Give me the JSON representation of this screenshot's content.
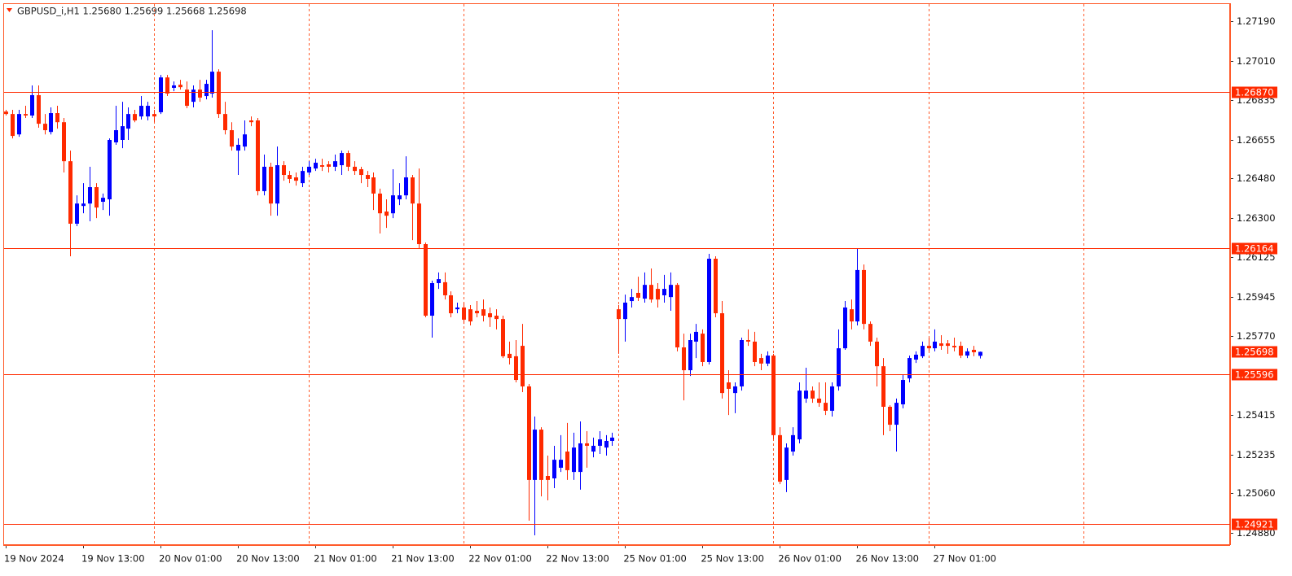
{
  "chart_data": {
    "type": "candlestick",
    "title": "GBPUSD_i,H1  1.25680 1.25699 1.25668 1.25698",
    "categories": [
      "19 Nov 2024",
      null,
      null,
      null,
      null,
      null,
      null,
      null,
      null,
      null,
      null,
      null,
      "19 Nov 13:00",
      null,
      null,
      null,
      null,
      null,
      null,
      null,
      null,
      null,
      null,
      null,
      "20 Nov 01:00",
      null,
      null,
      null,
      null,
      null,
      null,
      null,
      null,
      null,
      null,
      null,
      "20 Nov 13:00",
      null,
      null,
      null,
      null,
      null,
      null,
      null,
      null,
      null,
      null,
      null,
      "21 Nov 01:00",
      null,
      null,
      null,
      null,
      null,
      null,
      null,
      null,
      null,
      null,
      null,
      "21 Nov 13:00",
      null,
      null,
      null,
      null,
      null,
      null,
      null,
      null,
      null,
      null,
      null,
      "22 Nov 01:00",
      null,
      null,
      null,
      null,
      null,
      null,
      null,
      null,
      null,
      null,
      null,
      "22 Nov 13:00",
      null,
      null,
      null,
      null,
      null,
      null,
      null,
      null,
      null,
      null,
      null,
      "25 Nov 01:00",
      null,
      null,
      null,
      null,
      null,
      null,
      null,
      null,
      null,
      null,
      null,
      "25 Nov 13:00",
      null,
      null,
      null,
      null,
      null,
      null,
      null,
      null,
      null,
      null,
      null,
      "26 Nov 01:00",
      null,
      null,
      null,
      null,
      null,
      null,
      null,
      null,
      null,
      null,
      null,
      "26 Nov 13:00",
      null,
      null,
      null,
      null,
      null,
      null,
      null,
      null,
      null,
      null,
      null,
      "27 Nov 01:00",
      null,
      null,
      null,
      null,
      null,
      null,
      null
    ],
    "open": [
      1.26782,
      1.26771,
      1.26679,
      1.26771,
      1.26764,
      1.26856,
      1.26727,
      1.2669,
      1.26775,
      1.26734,
      1.26558,
      1.26276,
      1.26356,
      1.26367,
      1.26441,
      1.26375,
      1.26386,
      1.26643,
      1.26654,
      1.26705,
      1.26771,
      1.2676,
      1.2676,
      1.26771,
      1.26779,
      1.26936,
      1.26889,
      1.26903,
      1.26881,
      1.26826,
      1.26881,
      1.26852,
      1.26863,
      1.26962,
      1.26771,
      1.26698,
      1.26606,
      1.26624,
      1.26742,
      1.26742,
      1.26423,
      1.26533,
      1.26367,
      1.2654,
      1.26496,
      1.26485,
      1.26459,
      1.26507,
      1.26525,
      1.2654,
      1.26544,
      1.26533,
      1.2654,
      1.26595,
      1.26533,
      1.26522,
      1.26496,
      1.26485,
      1.26412,
      1.26331,
      1.26323,
      1.26386,
      1.26404,
      1.26485,
      1.26367,
      1.26184,
      1.25861,
      1.26008,
      1.26012,
      1.25953,
      1.2589,
      1.25898,
      1.2589,
      1.25883,
      1.2589,
      1.25872,
      1.25861,
      1.25846,
      1.25689,
      1.25678,
      1.25725,
      1.25542,
      1.2512,
      1.25347,
      1.25138,
      1.25127,
      1.25175,
      1.25248,
      1.25156,
      1.25156,
      1.25285,
      1.25248,
      1.25274,
      1.25266,
      1.25296,
      1.2589,
      1.25846,
      1.25927,
      1.25964,
      1.25938,
      1.26,
      1.25982,
      1.25953,
      1.25945,
      1.26,
      1.25718,
      1.25615,
      1.25744,
      1.2578,
      1.25652,
      1.26118,
      1.25872,
      1.2556,
      1.25512,
      1.25542,
      1.25751,
      1.25744,
      1.2567,
      1.25645,
      1.25681,
      1.25322,
      1.2512,
      1.25248,
      1.25303,
      1.25487,
      1.25523,
      1.25487,
      1.25468,
      1.25432,
      1.25542,
      1.25714,
      1.2589,
      1.25835,
      1.26067,
      1.25824,
      1.25744,
      1.25633,
      1.2545,
      1.25369,
      1.25461,
      1.25578,
      1.25663,
      1.25678,
      1.25725,
      1.25714,
      1.25736,
      1.25736,
      1.25725,
      1.25725,
      1.25681,
      1.25707,
      1.2568
    ],
    "high": [
      1.2679,
      1.2679,
      1.2679,
      1.26808,
      1.269,
      1.269,
      1.26771,
      1.26801,
      1.26808,
      1.26753,
      1.26606,
      1.26404,
      1.26459,
      1.26533,
      1.26459,
      1.26412,
      1.26661,
      1.26808,
      1.26826,
      1.26801,
      1.2679,
      1.26852,
      1.26826,
      1.2679,
      1.26947,
      1.26947,
      1.26918,
      1.26925,
      1.26918,
      1.269,
      1.26925,
      1.26925,
      1.27149,
      1.26973,
      1.26826,
      1.26734,
      1.26661,
      1.26742,
      1.2676,
      1.26753,
      1.26588,
      1.26551,
      1.26624,
      1.26558,
      1.26514,
      1.26507,
      1.26533,
      1.26558,
      1.26569,
      1.26569,
      1.26558,
      1.26588,
      1.26606,
      1.26606,
      1.26558,
      1.26533,
      1.26514,
      1.26507,
      1.26434,
      1.26386,
      1.26522,
      1.26459,
      1.2658,
      1.26496,
      1.26525,
      1.26191,
      1.26019,
      1.26056,
      1.26056,
      1.25971,
      1.2592,
      1.2592,
      1.25909,
      1.25927,
      1.25934,
      1.25898,
      1.2589,
      1.25861,
      1.25744,
      1.25751,
      1.25824,
      1.25553,
      1.25406,
      1.25358,
      1.2523,
      1.25274,
      1.25322,
      1.25377,
      1.25333,
      1.25384,
      1.2534,
      1.25311,
      1.2534,
      1.25322,
      1.25333,
      1.25909,
      1.25956,
      1.25982,
      1.26037,
      1.26056,
      1.26074,
      1.26008,
      1.26045,
      1.26056,
      1.26008,
      1.2578,
      1.2578,
      1.25824,
      1.25799,
      1.2614,
      1.26129,
      1.25927,
      1.25615,
      1.2556,
      1.25762,
      1.25799,
      1.25788,
      1.25689,
      1.257,
      1.25689,
      1.25358,
      1.25285,
      1.25358,
      1.2556,
      1.25626,
      1.25542,
      1.2556,
      1.2556,
      1.2556,
      1.25799,
      1.25927,
      1.25934,
      1.26166,
      1.26092,
      1.25835,
      1.25762,
      1.2567,
      1.25457,
      1.25487,
      1.25597,
      1.25681,
      1.257,
      1.25744,
      1.25762,
      1.25799,
      1.25773,
      1.25751,
      1.25762,
      1.25744,
      1.25714,
      1.25725,
      1.25699
    ],
    "low": [
      1.26764,
      1.26661,
      1.26668,
      1.26753,
      1.26753,
      1.26709,
      1.26679,
      1.26679,
      1.26705,
      1.26507,
      1.26129,
      1.26265,
      1.26323,
      1.26287,
      1.26301,
      1.26338,
      1.26312,
      1.26632,
      1.26617,
      1.26654,
      1.26734,
      1.26746,
      1.26742,
      1.26734,
      1.26771,
      1.26852,
      1.26874,
      1.26881,
      1.26797,
      1.26801,
      1.26826,
      1.26837,
      1.26845,
      1.26753,
      1.26679,
      1.26606,
      1.26496,
      1.26606,
      1.26716,
      1.26404,
      1.26404,
      1.26312,
      1.26312,
      1.2647,
      1.26459,
      1.26448,
      1.26441,
      1.26496,
      1.26514,
      1.26514,
      1.26507,
      1.26514,
      1.26496,
      1.26514,
      1.26496,
      1.26459,
      1.26441,
      1.26338,
      1.26232,
      1.26257,
      1.26301,
      1.2636,
      1.26386,
      1.26202,
      1.26166,
      1.25854,
      1.25762,
      1.25982,
      1.25934,
      1.25854,
      1.25872,
      1.25824,
      1.25817,
      1.25854,
      1.25835,
      1.2581,
      1.25799,
      1.2567,
      1.25641,
      1.2556,
      1.25516,
      1.24936,
      1.2487,
      1.25046,
      1.25028,
      1.25083,
      1.25156,
      1.2512,
      1.2512,
      1.25076,
      1.25175,
      1.25222,
      1.25237,
      1.2523,
      1.25274,
      1.25689,
      1.25744,
      1.25898,
      1.25927,
      1.2592,
      1.2592,
      1.25898,
      1.2592,
      1.25883,
      1.257,
      1.25479,
      1.25589,
      1.2567,
      1.25633,
      1.25641,
      1.25854,
      1.25487,
      1.25413,
      1.25421,
      1.25523,
      1.25725,
      1.25633,
      1.25615,
      1.25633,
      1.25303,
      1.25101,
      1.25065,
      1.2523,
      1.25285,
      1.25468,
      1.25468,
      1.2545,
      1.25413,
      1.25406,
      1.25523,
      1.25707,
      1.25799,
      1.25817,
      1.25799,
      1.25725,
      1.25542,
      1.25322,
      1.2534,
      1.25248,
      1.25443,
      1.2556,
      1.25648,
      1.2567,
      1.257,
      1.257,
      1.25707,
      1.25689,
      1.257,
      1.2567,
      1.2567,
      1.25678,
      1.25668
    ],
    "close": [
      1.26771,
      1.26672,
      1.26771,
      1.26764,
      1.26856,
      1.26727,
      1.26698,
      1.26775,
      1.26734,
      1.26558,
      1.26276,
      1.26367,
      1.26367,
      1.26441,
      1.26349,
      1.26393,
      1.26654,
      1.26698,
      1.26716,
      1.26771,
      1.26742,
      1.26808,
      1.26808,
      1.2676,
      1.26936,
      1.26863,
      1.269,
      1.26892,
      1.26808,
      1.26881,
      1.26845,
      1.26907,
      1.26962,
      1.26771,
      1.26698,
      1.26624,
      1.26632,
      1.26679,
      1.26734,
      1.26423,
      1.26533,
      1.26367,
      1.2654,
      1.26496,
      1.26478,
      1.2647,
      1.26514,
      1.26533,
      1.26551,
      1.26533,
      1.26533,
      1.26558,
      1.26595,
      1.26533,
      1.26514,
      1.26496,
      1.26478,
      1.26412,
      1.26323,
      1.26312,
      1.26404,
      1.26404,
      1.26485,
      1.26367,
      1.26184,
      1.25861,
      1.26008,
      1.26026,
      1.25953,
      1.25872,
      1.25898,
      1.25843,
      1.25835,
      1.25872,
      1.25861,
      1.25854,
      1.25846,
      1.25678,
      1.2567,
      1.25571,
      1.25542,
      1.2512,
      1.25347,
      1.2512,
      1.2512,
      1.25211,
      1.25211,
      1.25164,
      1.25266,
      1.25285,
      1.25274,
      1.25274,
      1.25303,
      1.25296,
      1.25311,
      1.25846,
      1.2592,
      1.25945,
      1.25942,
      1.26,
      1.25934,
      1.25934,
      1.25982,
      1.26,
      1.25718,
      1.25615,
      1.25751,
      1.25788,
      1.25652,
      1.26118,
      1.25872,
      1.25512,
      1.25531,
      1.25542,
      1.25751,
      1.25744,
      1.25652,
      1.25645,
      1.25681,
      1.25322,
      1.25112,
      1.25266,
      1.25322,
      1.25523,
      1.25523,
      1.25487,
      1.25468,
      1.25432,
      1.25542,
      1.25714,
      1.25898,
      1.25835,
      1.26067,
      1.25824,
      1.25744,
      1.25633,
      1.2545,
      1.25369,
      1.25468,
      1.25571,
      1.2567,
      1.25685,
      1.25725,
      1.25714,
      1.25744,
      1.25725,
      1.25725,
      1.25718,
      1.25681,
      1.257,
      1.25696,
      1.25698
    ],
    "up_color": "#0000ff",
    "down_color": "#ff2a00",
    "ylim": [
      1.24826,
      1.27267
    ],
    "yticks": [
      {
        "value": 1.2719,
        "label": "1.27190"
      },
      {
        "value": 1.2701,
        "label": "1.27010"
      },
      1.26835,
      1.26655,
      {
        "value": 1.2648,
        "label": "1.26480"
      },
      {
        "value": 1.263,
        "label": "1.26300"
      },
      1.26125,
      1.25945,
      {
        "value": 1.2577,
        "label": "1.25770"
      },
      1.25415,
      1.25235,
      {
        "value": 1.2506,
        "label": "1.25060"
      },
      {
        "value": 1.2488,
        "label": "1.24880"
      }
    ],
    "levels": [
      {
        "value": 1.2687,
        "label": "1.26870"
      },
      1.26164,
      1.25596,
      1.24921
    ],
    "current_price": 1.25698
  }
}
